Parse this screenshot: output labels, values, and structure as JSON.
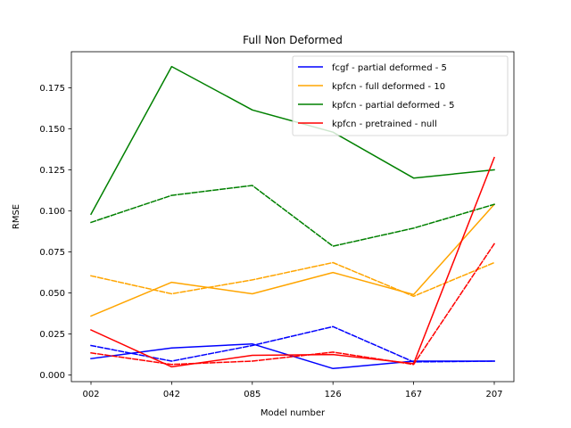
{
  "chart_data": {
    "type": "line",
    "title": "Full Non Deformed",
    "xlabel": "Model number",
    "ylabel": "RMSE",
    "categories": [
      "002",
      "042",
      "085",
      "126",
      "167",
      "207"
    ],
    "ylim": [
      -0.004,
      0.197
    ],
    "yticks": [
      0.0,
      0.025,
      0.05,
      0.075,
      0.1,
      0.125,
      0.15,
      0.175
    ],
    "ytick_labels": [
      "0.000",
      "0.025",
      "0.050",
      "0.075",
      "0.100",
      "0.125",
      "0.150",
      "0.175"
    ],
    "grid": false,
    "legend_position": "top-right",
    "series": [
      {
        "name": "fcgf - partial deformed - 5",
        "color": "#0000ff",
        "style": "solid",
        "values": [
          0.01,
          0.0165,
          0.019,
          0.004,
          0.0085,
          0.0085
        ]
      },
      {
        "name": "",
        "color": "#0000ff",
        "style": "dashed",
        "values": [
          0.018,
          0.0085,
          0.018,
          0.0295,
          0.008,
          0.0085
        ]
      },
      {
        "name": "kpfcn - full deformed - 10",
        "color": "#ffa500",
        "style": "solid",
        "values": [
          0.036,
          0.0565,
          0.0495,
          0.0625,
          0.049,
          0.104
        ]
      },
      {
        "name": "",
        "color": "#ffa500",
        "style": "dashed",
        "values": [
          0.0605,
          0.0495,
          0.058,
          0.0685,
          0.048,
          0.0685
        ]
      },
      {
        "name": "kpfcn - partial deformed - 5",
        "color": "#008000",
        "style": "solid",
        "values": [
          0.098,
          0.188,
          0.1615,
          0.148,
          0.12,
          0.125
        ]
      },
      {
        "name": "",
        "color": "#008000",
        "style": "dashed",
        "values": [
          0.093,
          0.1095,
          0.1155,
          0.0785,
          0.0895,
          0.104
        ]
      },
      {
        "name": "kpfcn - pretrained - null",
        "color": "#ff0000",
        "style": "solid",
        "values": [
          0.0275,
          0.005,
          0.012,
          0.0125,
          0.007,
          0.1325
        ]
      },
      {
        "name": "",
        "color": "#ff0000",
        "style": "dashed",
        "values": [
          0.0135,
          0.0065,
          0.0085,
          0.014,
          0.0065,
          0.08
        ]
      }
    ]
  }
}
